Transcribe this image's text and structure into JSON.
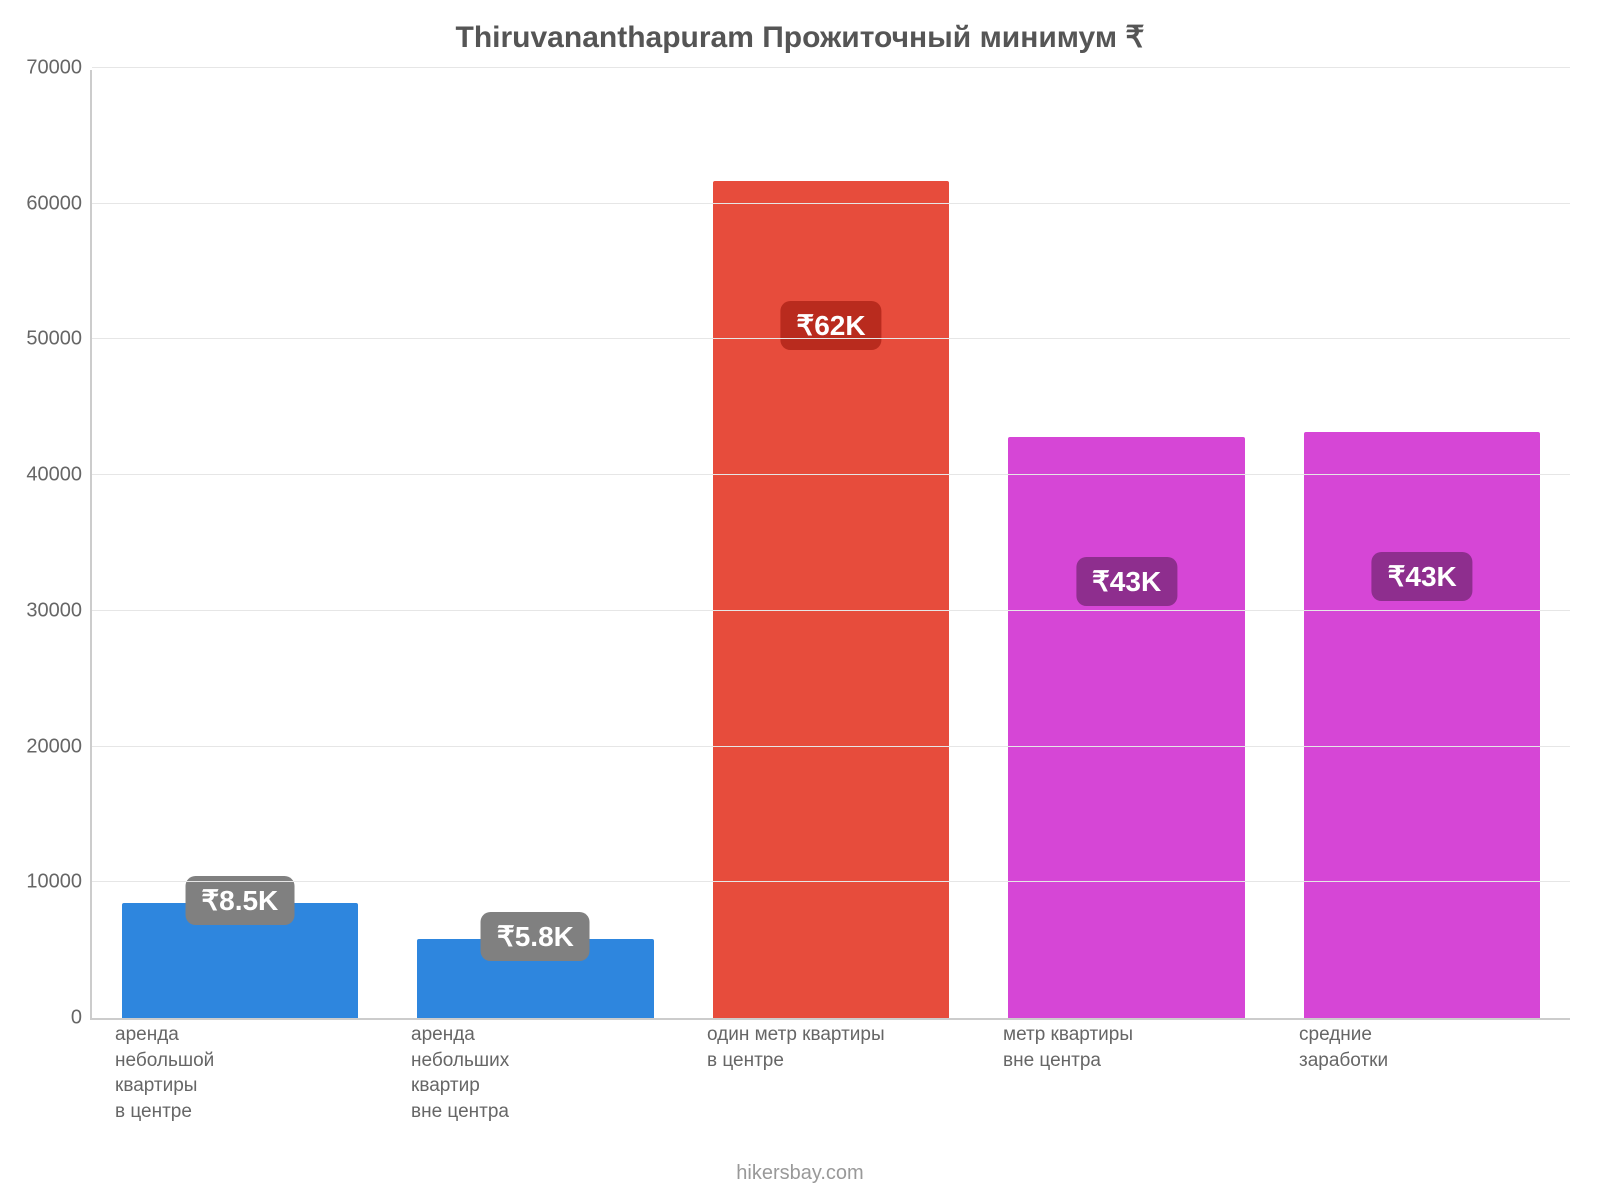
{
  "chart": {
    "type": "bar",
    "title": "Thiruvananthapuram Прожиточный минимум ₹",
    "title_fontsize": 30,
    "title_color": "#555555",
    "footer": "hikersbay.com",
    "footer_color": "#999999",
    "footer_fontsize": 20,
    "background_color": "#ffffff",
    "axis_color": "#cccccc",
    "grid_color": "#e6e6e6",
    "tick_font_color": "#666666",
    "tick_fontsize": 20,
    "xlabel_fontsize": 19,
    "ylim_min": 0,
    "ylim_max": 70000,
    "ytick_step": 10000,
    "yticks": [
      0,
      10000,
      20000,
      30000,
      40000,
      50000,
      60000,
      70000
    ],
    "bar_width_pct": 80,
    "value_badge_fontsize": 28,
    "value_badge_radius": 10,
    "bars": [
      {
        "category": "аренда\nнебольшой\nквартиры\nв центре",
        "value": 8500,
        "value_label": "₹8.5K",
        "bar_color": "#2e86de",
        "badge_bg": "#808080",
        "badge_text_color": "#ffffff",
        "badge_offset_above": true
      },
      {
        "category": "аренда\nнебольших\nквартир\nвне центра",
        "value": 5800,
        "value_label": "₹5.8K",
        "bar_color": "#2e86de",
        "badge_bg": "#808080",
        "badge_text_color": "#ffffff",
        "badge_offset_above": true
      },
      {
        "category": "один метр квартиры\nв центре",
        "value": 61700,
        "value_label": "₹62K",
        "bar_color": "#e74c3c",
        "badge_bg": "#b92b1e",
        "badge_text_color": "#ffffff",
        "badge_offset_above": false
      },
      {
        "category": "метр квартиры\nвне центра",
        "value": 42800,
        "value_label": "₹43K",
        "bar_color": "#d646d6",
        "badge_bg": "#8e2e8e",
        "badge_text_color": "#ffffff",
        "badge_offset_above": false
      },
      {
        "category": "средние\nзаработки",
        "value": 43200,
        "value_label": "₹43K",
        "bar_color": "#d646d6",
        "badge_bg": "#8e2e8e",
        "badge_text_color": "#ffffff",
        "badge_offset_above": false
      }
    ]
  }
}
